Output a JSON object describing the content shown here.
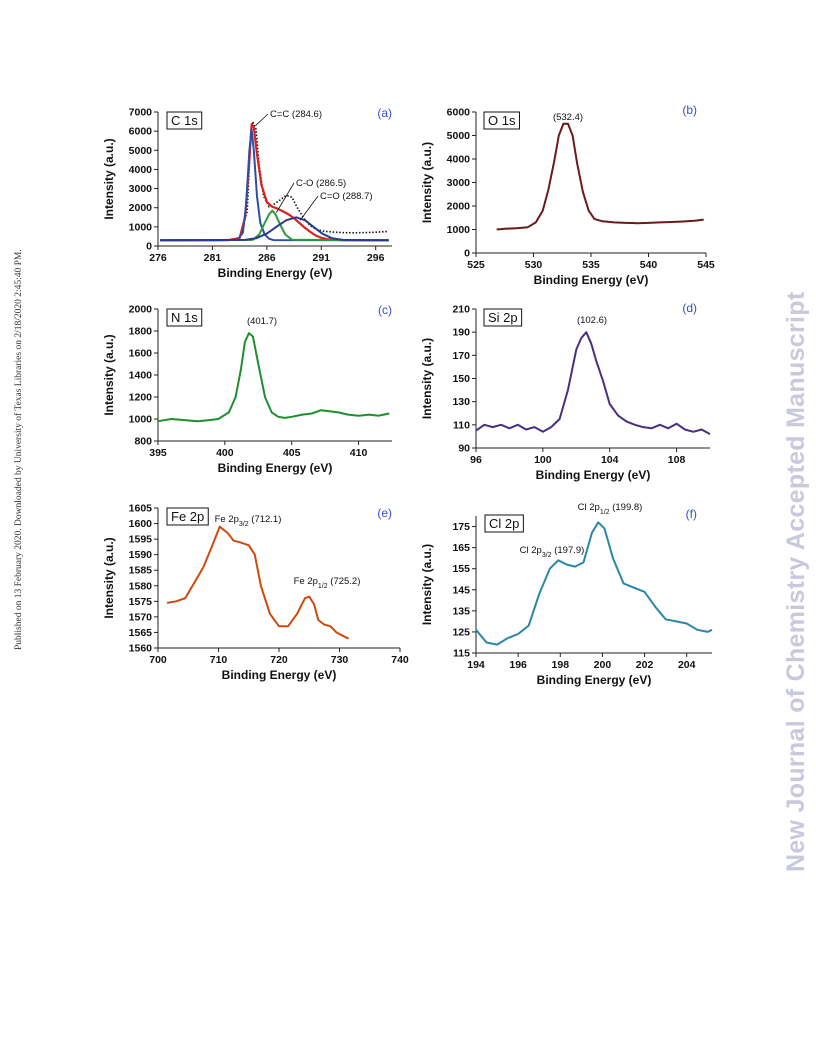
{
  "side_note": "Published on 13 February 2020. Downloaded by University of Texas Libraries on 2/18/2020 2:45:40 PM.",
  "watermark": "New Journal of Chemistry Accepted Manuscript",
  "chart_data": [
    {
      "id": "a",
      "type": "line",
      "title": "C 1s",
      "panel_label": "(a)",
      "xlabel": "Binding Energy (eV)",
      "ylabel": "Intensity (a.u.)",
      "xlim": [
        276,
        297.5
      ],
      "ylim": [
        0,
        7000
      ],
      "xticks": [
        276,
        281,
        286,
        291,
        296
      ],
      "yticks": [
        0,
        1000,
        2000,
        3000,
        4000,
        5000,
        6000,
        7000
      ],
      "colors": {
        "raw": "#111111",
        "envelope": "#e0201c",
        "c_c": "#2c4fa3",
        "c_o": "#2a9a3a",
        "c_eq_o": "#2b3a8f"
      },
      "series": [
        {
          "key": "raw",
          "style": "dotted",
          "x": [
            276.2,
            280,
            282,
            283.5,
            284.2,
            284.5,
            284.7,
            285.0,
            285.3,
            285.7,
            286.2,
            286.7,
            287.2,
            287.8,
            288.3,
            288.8,
            289.4,
            290,
            290.6,
            291.2,
            292,
            293,
            294,
            295,
            296,
            297.2
          ],
          "y": [
            300,
            300,
            300,
            400,
            1800,
            5500,
            6500,
            6100,
            4200,
            2600,
            2050,
            2200,
            2400,
            2650,
            2550,
            2000,
            1450,
            1050,
            850,
            780,
            730,
            700,
            690,
            700,
            720,
            760
          ]
        },
        {
          "key": "envelope",
          "style": "solid",
          "x": [
            276.2,
            281,
            282.5,
            283.5,
            284.0,
            284.4,
            284.6,
            284.8,
            285.1,
            285.5,
            286.0,
            286.5,
            287,
            287.5,
            288,
            288.5,
            289,
            289.5,
            290,
            290.5,
            291,
            291.5,
            292.2,
            293,
            294,
            297.2
          ],
          "y": [
            300,
            300,
            310,
            420,
            1500,
            4500,
            6350,
            6200,
            4800,
            3200,
            2300,
            2050,
            1950,
            1800,
            1650,
            1450,
            1200,
            950,
            730,
            550,
            430,
            360,
            320,
            305,
            300,
            300
          ]
        },
        {
          "key": "c_c",
          "style": "solid",
          "x": [
            276.2,
            283.3,
            283.8,
            284.1,
            284.4,
            284.6,
            284.8,
            285.1,
            285.4,
            285.8,
            286.2,
            286.6,
            297.2
          ],
          "y": [
            300,
            320,
            700,
            2200,
            5000,
            6100,
            5000,
            2600,
            1200,
            600,
            380,
            310,
            300
          ]
        },
        {
          "key": "c_o",
          "style": "solid",
          "x": [
            276.2,
            284.7,
            285.3,
            285.8,
            286.2,
            286.5,
            286.8,
            287.2,
            287.7,
            288.3,
            297.2
          ],
          "y": [
            300,
            320,
            600,
            1200,
            1650,
            1850,
            1650,
            1150,
            600,
            330,
            300
          ]
        },
        {
          "key": "c_eq_o",
          "style": "solid",
          "x": [
            276.2,
            284,
            285,
            286,
            287,
            287.8,
            288.7,
            289.5,
            290.3,
            291.1,
            292,
            293,
            297.2
          ],
          "y": [
            300,
            320,
            400,
            650,
            1050,
            1350,
            1500,
            1350,
            1000,
            650,
            400,
            320,
            300
          ]
        }
      ],
      "annotations": [
        {
          "text": "C=C (284.6)",
          "x": 284.6,
          "y": 6450
        },
        {
          "text": "C-O (286.5)",
          "x": 286.5,
          "y": 1900
        },
        {
          "text": "C=O (288.7)",
          "x": 288.7,
          "y": 1500
        }
      ]
    },
    {
      "id": "b",
      "type": "line",
      "title": "O 1s",
      "panel_label": "(b)",
      "xlabel": "Binding Energy (eV)",
      "ylabel": "Intensity (a.u.)",
      "xlim": [
        525,
        545
      ],
      "ylim": [
        0,
        6000
      ],
      "xticks": [
        525,
        530,
        535,
        540,
        545
      ],
      "yticks": [
        0,
        1000,
        2000,
        3000,
        4000,
        5000,
        6000
      ],
      "colors": {
        "line": "#6b1a1a"
      },
      "series": [
        {
          "key": "line",
          "x": [
            526.8,
            527.5,
            528.5,
            529.5,
            530.2,
            530.8,
            531.3,
            531.8,
            532.2,
            532.6,
            533.0,
            533.4,
            533.8,
            534.3,
            534.8,
            535.3,
            536,
            537,
            538,
            539,
            540,
            541,
            542,
            543,
            544,
            544.8
          ],
          "y": [
            1000,
            1030,
            1050,
            1100,
            1300,
            1800,
            2700,
            3900,
            5000,
            5500,
            5500,
            5000,
            3800,
            2600,
            1800,
            1450,
            1350,
            1300,
            1280,
            1270,
            1280,
            1300,
            1320,
            1340,
            1370,
            1420
          ]
        }
      ],
      "annotations": [
        {
          "text": "(532.4)",
          "x": 532.6,
          "y": 5500
        }
      ]
    },
    {
      "id": "c",
      "type": "line",
      "title": "N 1s",
      "panel_label": "(c)",
      "xlabel": "Binding Energy (eV)",
      "ylabel": "Intensity (a.u.)",
      "xlim": [
        395,
        412.5
      ],
      "ylim": [
        800,
        2000
      ],
      "xticks": [
        395,
        400,
        405,
        410
      ],
      "yticks": [
        800,
        1000,
        1200,
        1400,
        1600,
        1800,
        2000
      ],
      "colors": {
        "line": "#1e8f2e"
      },
      "series": [
        {
          "key": "line",
          "x": [
            395,
            396,
            397,
            398,
            398.8,
            399.5,
            400.3,
            400.8,
            401.2,
            401.5,
            401.8,
            402.1,
            402.5,
            403,
            403.5,
            404,
            404.5,
            405,
            405.8,
            406.5,
            407.2,
            407.8,
            408.5,
            409.2,
            410,
            410.8,
            411.5,
            412.3
          ],
          "y": [
            980,
            1000,
            990,
            980,
            990,
            1000,
            1060,
            1200,
            1450,
            1700,
            1780,
            1750,
            1500,
            1200,
            1060,
            1020,
            1010,
            1020,
            1040,
            1050,
            1080,
            1070,
            1060,
            1040,
            1030,
            1040,
            1030,
            1050
          ]
        }
      ],
      "annotations": [
        {
          "text": "(401.7)",
          "x": 401.7,
          "y": 1780
        }
      ]
    },
    {
      "id": "d",
      "type": "line",
      "title": "Si 2p",
      "panel_label": "(d)",
      "xlabel": "Binding Energy (eV)",
      "ylabel": "Intensity (a.u.)",
      "xlim": [
        96,
        110
      ],
      "ylim": [
        90,
        210
      ],
      "xticks": [
        96,
        100,
        104,
        108
      ],
      "yticks": [
        90,
        110,
        130,
        150,
        170,
        190,
        210
      ],
      "colors": {
        "line": "#4a2f80"
      },
      "series": [
        {
          "key": "line",
          "x": [
            96,
            96.5,
            97,
            97.5,
            98,
            98.5,
            99,
            99.5,
            100,
            100.5,
            101,
            101.5,
            102,
            102.3,
            102.6,
            102.9,
            103.2,
            103.6,
            104,
            104.5,
            105,
            105.5,
            106,
            106.5,
            107,
            107.5,
            108,
            108.5,
            109,
            109.5,
            110
          ],
          "y": [
            105,
            110,
            108,
            110,
            107,
            110,
            106,
            108,
            104,
            108,
            115,
            140,
            175,
            185,
            190,
            180,
            165,
            148,
            128,
            118,
            113,
            110,
            108,
            107,
            110,
            107,
            111,
            106,
            104,
            106,
            102
          ]
        }
      ],
      "annotations": [
        {
          "text": "(102.6)",
          "x": 102.6,
          "y": 190
        }
      ]
    },
    {
      "id": "e",
      "type": "line",
      "title": "Fe 2p",
      "panel_label": "(e)",
      "xlabel": "Binding Energy (eV)",
      "ylabel": "Intensity (a.u.)",
      "xlim": [
        700,
        740
      ],
      "ylim": [
        1560,
        1605
      ],
      "xticks": [
        700,
        710,
        720,
        730,
        740
      ],
      "yticks": [
        1560,
        1565,
        1570,
        1575,
        1580,
        1585,
        1590,
        1595,
        1600,
        1605
      ],
      "colors": {
        "line": "#cc4a0e"
      },
      "series": [
        {
          "key": "line",
          "x": [
            701.5,
            703,
            704.5,
            706,
            707.5,
            709,
            710.2,
            711.5,
            712.5,
            713.5,
            715,
            716,
            717,
            718.5,
            720,
            721.5,
            723,
            724.3,
            725,
            725.8,
            726.5,
            727.5,
            728.5,
            729.5,
            730.5,
            731.5
          ],
          "y": [
            1574.5,
            1575,
            1576,
            1581,
            1586,
            1593,
            1599,
            1597,
            1594.5,
            1594,
            1593,
            1590,
            1580,
            1571,
            1567,
            1567,
            1571,
            1576,
            1576.5,
            1574,
            1569,
            1567.5,
            1567,
            1565,
            1564,
            1563
          ]
        }
      ],
      "annotations": [
        {
          "text": "Fe 2p3/2 (712.1)",
          "x": 712.1,
          "y": 1599
        },
        {
          "text": "Fe 2p1/2 (725.2)",
          "x": 725.2,
          "y": 1576.5
        }
      ]
    },
    {
      "id": "f",
      "type": "line",
      "title": "Cl 2p",
      "panel_label": "(f)",
      "xlabel": "Binding Energy (eV)",
      "ylabel": "Intensity (a.u.)",
      "xlim": [
        194,
        205.2
      ],
      "ylim": [
        115,
        180
      ],
      "xticks": [
        194,
        196,
        198,
        200,
        202,
        204
      ],
      "yticks": [
        115,
        125,
        135,
        145,
        155,
        165,
        175
      ],
      "colors": {
        "line": "#2a86a6"
      },
      "series": [
        {
          "key": "line",
          "x": [
            194,
            194.5,
            195,
            195.5,
            196,
            196.5,
            197,
            197.5,
            197.9,
            198.3,
            198.7,
            199.1,
            199.5,
            199.8,
            200.1,
            200.5,
            201,
            201.5,
            202,
            202.5,
            203,
            203.5,
            204,
            204.5,
            205,
            205.2
          ],
          "y": [
            126,
            120,
            119,
            122,
            124,
            128,
            143,
            155,
            159,
            157,
            156,
            158,
            172,
            177,
            174,
            160,
            148,
            146,
            144,
            137,
            131,
            130,
            129,
            126,
            125,
            126
          ]
        }
      ],
      "annotations": [
        {
          "text": "Cl 2p1/2 (199.8)",
          "x": 199.8,
          "y": 177
        },
        {
          "text": "Cl 2p3/2 (197.9)",
          "x": 197.9,
          "y": 159
        }
      ]
    }
  ]
}
